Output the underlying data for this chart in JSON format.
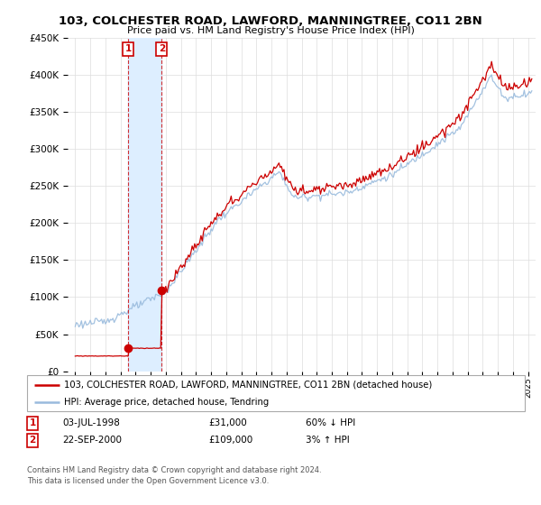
{
  "title": "103, COLCHESTER ROAD, LAWFORD, MANNINGTREE, CO11 2BN",
  "subtitle": "Price paid vs. HM Land Registry's House Price Index (HPI)",
  "ylim": [
    0,
    450000
  ],
  "xlim_start": 1994.5,
  "xlim_end": 2025.5,
  "legend1": "103, COLCHESTER ROAD, LAWFORD, MANNINGTREE, CO11 2BN (detached house)",
  "legend2": "HPI: Average price, detached house, Tendring",
  "sale1_date": 1998.503,
  "sale1_price": 31000,
  "sale2_date": 2000.728,
  "sale2_price": 109000,
  "footer1": "Contains HM Land Registry data © Crown copyright and database right 2024.",
  "footer2": "This data is licensed under the Open Government Licence v3.0.",
  "line_color_red": "#cc0000",
  "line_color_blue": "#99bbdd",
  "shade_color": "#ddeeff",
  "background_color": "#ffffff",
  "grid_color": "#dddddd"
}
